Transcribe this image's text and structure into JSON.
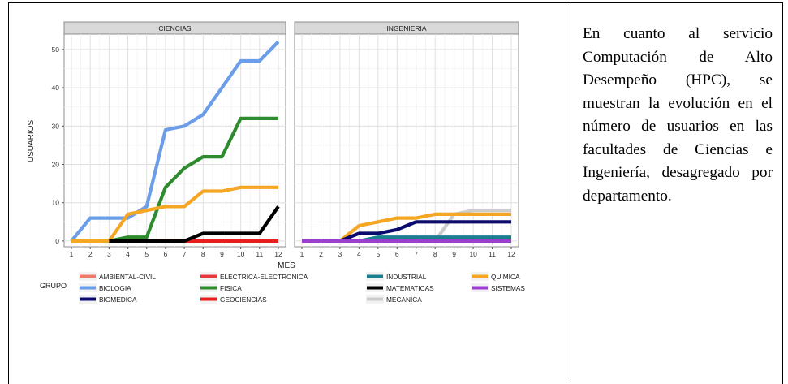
{
  "caption": "En cuanto al servicio Computación de Alto Desempeño (HPC), se muestran la evolución en el número de usuarios en las facultades de Ciencias e Ingeniería, desagregado por departamento.",
  "chart_data": {
    "type": "line",
    "ylabel": "USUARIOS",
    "xlabel": "MES",
    "xlim": [
      1,
      12
    ],
    "ylim": [
      -1.5,
      54
    ],
    "x_ticks": [
      1,
      2,
      3,
      4,
      5,
      6,
      7,
      8,
      9,
      10,
      11,
      12
    ],
    "y_ticks": [
      0,
      10,
      20,
      30,
      40,
      50
    ],
    "grid": true,
    "legend": {
      "title": "GRUPO",
      "placement": "bottom",
      "entries": [
        "AMBIENTAL-CIVIL",
        "ELECTRICA-ELECTRONICA",
        "INDUSTRIAL",
        "QUIMICA",
        "BIOLOGIA",
        "FISICA",
        "MATEMATICAS",
        "SISTEMAS",
        "BIOMEDICA",
        "GEOCIENCIAS",
        "MECANICA"
      ],
      "colors": {
        "AMBIENTAL-CIVIL": "#f07a6a",
        "ELECTRICA-ELECTRONICA": "#e8383d",
        "INDUSTRIAL": "#1a7f8e",
        "QUIMICA": "#f5a623",
        "BIOLOGIA": "#6b9de8",
        "FISICA": "#2e8b2e",
        "MATEMATICAS": "#000000",
        "SISTEMAS": "#9b3fcf",
        "BIOMEDICA": "#0b0b6e",
        "GEOCIENCIAS": "#e81d1d",
        "MECANICA": "#cccccc"
      }
    },
    "panels": [
      {
        "title": "CIENCIAS",
        "series": [
          {
            "name": "GEOCIENCIAS",
            "x": [
              1,
              2,
              3,
              4,
              5,
              6,
              7,
              8,
              9,
              10,
              11,
              12
            ],
            "y": [
              0,
              0,
              0,
              0,
              0,
              0,
              0,
              0,
              0,
              0,
              0,
              0
            ]
          },
          {
            "name": "BIOLOGIA",
            "x": [
              1,
              2,
              3,
              4,
              5,
              6,
              7,
              8,
              9,
              10,
              11,
              12
            ],
            "y": [
              0,
              6,
              6,
              6,
              9,
              29,
              30,
              33,
              40,
              47,
              47,
              52
            ]
          },
          {
            "name": "FISICA",
            "x": [
              1,
              2,
              3,
              4,
              5,
              6,
              7,
              8,
              9,
              10,
              11,
              12
            ],
            "y": [
              0,
              0,
              0,
              1,
              1,
              14,
              19,
              22,
              22,
              32,
              32,
              32
            ]
          },
          {
            "name": "QUIMICA",
            "x": [
              1,
              2,
              3,
              4,
              5,
              6,
              7,
              8,
              9,
              10,
              11,
              12
            ],
            "y": [
              0,
              0,
              0,
              7,
              8,
              9,
              9,
              13,
              13,
              14,
              14,
              14
            ]
          },
          {
            "name": "MATEMATICAS",
            "x": [
              3,
              4,
              5,
              6,
              7,
              8,
              9,
              10,
              11,
              12
            ],
            "y": [
              0,
              0,
              0,
              0,
              0,
              2,
              2,
              2,
              2,
              9
            ]
          }
        ]
      },
      {
        "title": "INGENIERIA",
        "series": [
          {
            "name": "MECANICA",
            "x": [
              1,
              2,
              3,
              4,
              5,
              6,
              7,
              8,
              9,
              10,
              11,
              12
            ],
            "y": [
              0,
              0,
              0,
              0,
              0,
              0,
              0,
              0,
              7,
              8,
              8,
              8
            ]
          },
          {
            "name": "QUIMICA",
            "x": [
              1,
              2,
              3,
              4,
              5,
              6,
              7,
              8,
              9,
              10,
              11,
              12
            ],
            "y": [
              0,
              0,
              0,
              4,
              5,
              6,
              6,
              7,
              7,
              7,
              7,
              7
            ]
          },
          {
            "name": "BIOMEDICA",
            "x": [
              1,
              2,
              3,
              4,
              5,
              6,
              7,
              8,
              9,
              10,
              11,
              12
            ],
            "y": [
              0,
              0,
              0,
              2,
              2,
              3,
              5,
              5,
              5,
              5,
              5,
              5
            ]
          },
          {
            "name": "INDUSTRIAL",
            "x": [
              1,
              2,
              3,
              4,
              5,
              6,
              7,
              8,
              9,
              10,
              11,
              12
            ],
            "y": [
              0,
              0,
              0,
              0,
              1,
              1,
              1,
              1,
              1,
              1,
              1,
              1
            ]
          },
          {
            "name": "AMBIENTAL-CIVIL",
            "x": [
              1,
              2,
              3,
              4,
              5,
              6,
              7,
              8,
              9,
              10,
              11,
              12
            ],
            "y": [
              0,
              0,
              0,
              0,
              0,
              0,
              0,
              0,
              0,
              0,
              0,
              0
            ]
          },
          {
            "name": "SISTEMAS",
            "x": [
              1,
              2,
              3,
              4,
              5,
              6,
              7,
              8,
              9,
              10,
              11,
              12
            ],
            "y": [
              0,
              0,
              0,
              0,
              0,
              0,
              0,
              0,
              0,
              0,
              0,
              0
            ]
          }
        ]
      }
    ]
  }
}
